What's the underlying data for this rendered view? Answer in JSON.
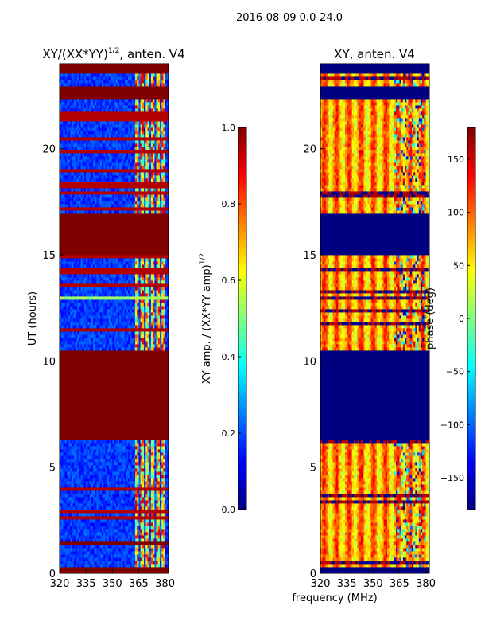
{
  "figure": {
    "suptitle": "2016-08-09 0.0-24.0",
    "xlabel_shared": "frequency (MHz)"
  },
  "chart_data": [
    {
      "type": "heatmap",
      "title_base": "XY/(XX*YY)",
      "title_exp": "1/2",
      "title_tail": ", anten. V4",
      "xlabel": "",
      "ylabel": "UT (hours)",
      "xlim": [
        320,
        382
      ],
      "ylim": [
        0,
        24
      ],
      "xticks": [
        320,
        335,
        350,
        365,
        380
      ],
      "yticks": [
        0,
        5,
        10,
        15,
        20
      ],
      "colorbar": {
        "label_base": "XY amp. / (XX*YY amp)",
        "label_exp": "1/2",
        "range": [
          0.0,
          1.0
        ],
        "ticks": [
          "0.0",
          "0.2",
          "0.4",
          "0.6",
          "0.8",
          "1.0"
        ],
        "colormap": "jet"
      },
      "solid_bands_hours": [
        [
          0.0,
          0.25
        ],
        [
          1.35,
          1.55
        ],
        [
          6.25,
          10.45
        ],
        [
          15.0,
          16.95
        ],
        [
          22.3,
          23.0
        ],
        [
          23.6,
          24.0
        ]
      ],
      "bright_line_hours": [
        12.95,
        13.05
      ],
      "active_freq_band_mhz": [
        362,
        380
      ],
      "background_level": 0.12,
      "active_band_level": 0.5
    },
    {
      "type": "heatmap",
      "title": "XY, anten. V4",
      "xlabel": "",
      "ylabel": "",
      "xlim": [
        320,
        382
      ],
      "ylim": [
        0,
        24
      ],
      "xticks": [
        320,
        335,
        350,
        365,
        380
      ],
      "yticks": [
        0,
        5,
        10,
        15,
        20
      ],
      "colorbar": {
        "label": "phase (deg)",
        "range": [
          -180,
          180
        ],
        "ticks": [
          "-150",
          "-100",
          "-50",
          "0",
          "50",
          "100",
          "150"
        ],
        "colormap": "jet"
      },
      "solid_bands_hours": [
        [
          0.0,
          0.25
        ],
        [
          6.25,
          10.45
        ],
        [
          15.0,
          16.95
        ],
        [
          22.3,
          23.0
        ],
        [
          23.6,
          24.0
        ]
      ],
      "solid_band_phase_deg": -180,
      "background_phase_deg": 100
    }
  ],
  "colors": {
    "jet_low": "#00007f",
    "jet_high": "#7f0000",
    "axis": "#000000"
  }
}
